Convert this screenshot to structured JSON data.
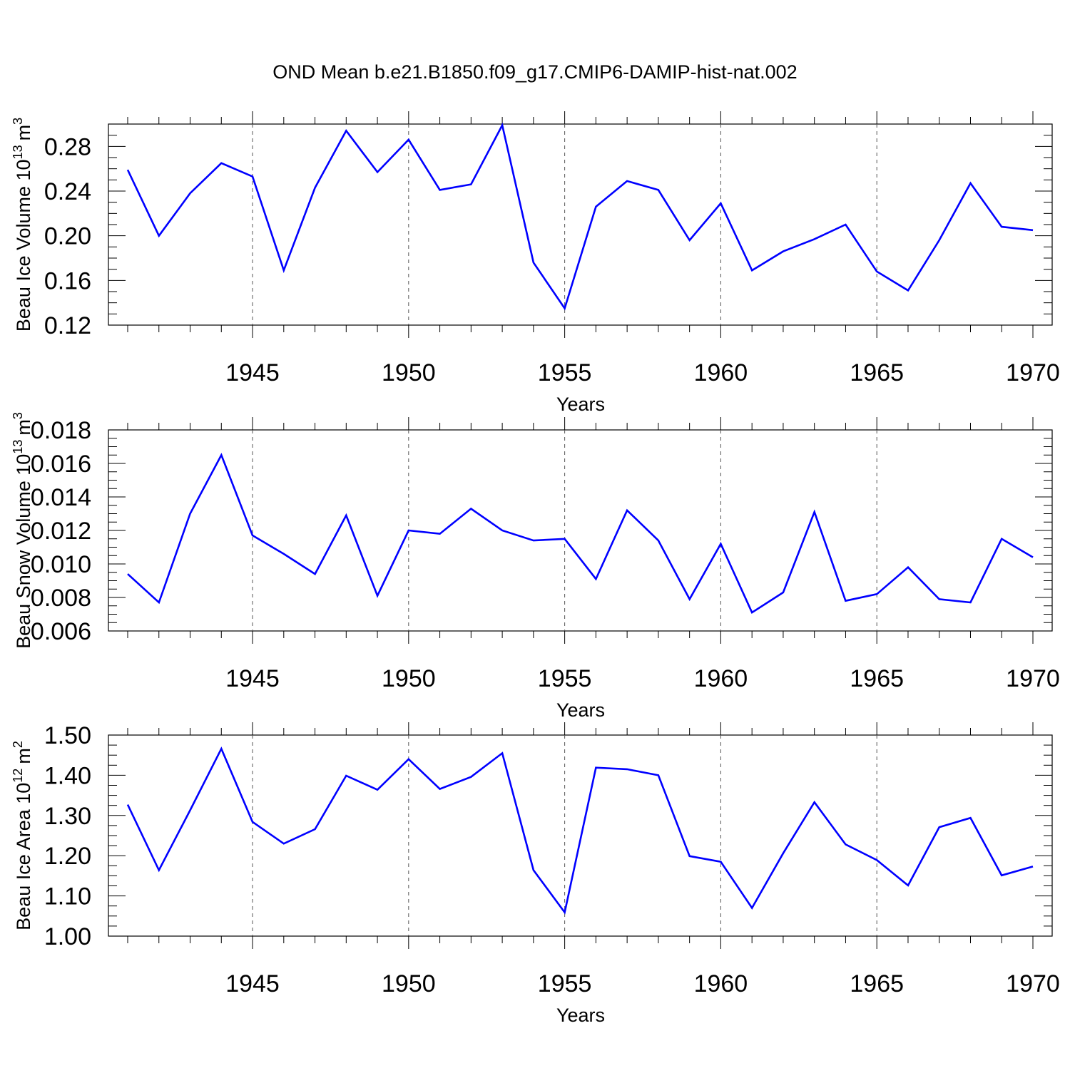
{
  "title": "OND Mean b.e21.B1850.f09_g17.CMIP6-DAMIP-hist-nat.002",
  "colors": {
    "series": "#0000ff",
    "axis": "#000000",
    "grid": "#555555",
    "background": "#ffffff"
  },
  "chart_data": [
    {
      "type": "line",
      "ylabel_main": "Beau Ice Volume 10",
      "ylabel_exp": "13",
      "ylabel_unit": "m",
      "ylabel_unit_exp": "3",
      "xlabel": "Years",
      "xlim": [
        1941,
        1970
      ],
      "ylim": [
        0.12,
        0.3
      ],
      "yticks": [
        0.12,
        0.16,
        0.2,
        0.24,
        0.28
      ],
      "ytick_labels": [
        "0.12",
        "0.16",
        "0.20",
        "0.24",
        "0.28"
      ],
      "xticks": [
        1945,
        1950,
        1955,
        1960,
        1965,
        1970
      ],
      "xtick_labels": [
        "1945",
        "1950",
        "1955",
        "1960",
        "1965",
        "1970"
      ],
      "x": [
        1941,
        1942,
        1943,
        1944,
        1945,
        1946,
        1947,
        1948,
        1949,
        1950,
        1951,
        1952,
        1953,
        1954,
        1955,
        1956,
        1957,
        1958,
        1959,
        1960,
        1961,
        1962,
        1963,
        1964,
        1965,
        1966,
        1967,
        1968,
        1969,
        1970
      ],
      "values": [
        0.259,
        0.2,
        0.238,
        0.265,
        0.253,
        0.169,
        0.243,
        0.294,
        0.257,
        0.286,
        0.241,
        0.246,
        0.299,
        0.176,
        0.135,
        0.226,
        0.249,
        0.241,
        0.196,
        0.229,
        0.169,
        0.186,
        0.197,
        0.21,
        0.168,
        0.151,
        0.196,
        0.247,
        0.208,
        0.205
      ]
    },
    {
      "type": "line",
      "ylabel_main": "Beau Snow Volume 10",
      "ylabel_exp": "13",
      "ylabel_unit": "m",
      "ylabel_unit_exp": "3",
      "xlabel": "Years",
      "xlim": [
        1941,
        1970
      ],
      "ylim": [
        0.006,
        0.018
      ],
      "yticks": [
        0.006,
        0.008,
        0.01,
        0.012,
        0.014,
        0.016,
        0.018
      ],
      "ytick_labels": [
        "0.006",
        "0.008",
        "0.010",
        "0.012",
        "0.014",
        "0.016",
        "0.018"
      ],
      "xticks": [
        1945,
        1950,
        1955,
        1960,
        1965,
        1970
      ],
      "xtick_labels": [
        "1945",
        "1950",
        "1955",
        "1960",
        "1965",
        "1970"
      ],
      "x": [
        1941,
        1942,
        1943,
        1944,
        1945,
        1946,
        1947,
        1948,
        1949,
        1950,
        1951,
        1952,
        1953,
        1954,
        1955,
        1956,
        1957,
        1958,
        1959,
        1960,
        1961,
        1962,
        1963,
        1964,
        1965,
        1966,
        1967,
        1968,
        1969,
        1970
      ],
      "values": [
        0.0094,
        0.0077,
        0.013,
        0.0165,
        0.0117,
        0.0106,
        0.0094,
        0.0129,
        0.0081,
        0.012,
        0.0118,
        0.0133,
        0.012,
        0.0114,
        0.0115,
        0.0091,
        0.0132,
        0.0114,
        0.0079,
        0.0112,
        0.0071,
        0.0083,
        0.0131,
        0.0078,
        0.0082,
        0.0098,
        0.0079,
        0.0077,
        0.0115,
        0.0104
      ]
    },
    {
      "type": "line",
      "ylabel_main": "Beau Ice Area 10",
      "ylabel_exp": "12",
      "ylabel_unit": "m",
      "ylabel_unit_exp": "2",
      "xlabel": "Years",
      "xlim": [
        1941,
        1970
      ],
      "ylim": [
        1.0,
        1.5
      ],
      "yticks": [
        1.0,
        1.1,
        1.2,
        1.3,
        1.4,
        1.5
      ],
      "ytick_labels": [
        "1.00",
        "1.10",
        "1.20",
        "1.30",
        "1.40",
        "1.50"
      ],
      "xticks": [
        1945,
        1950,
        1955,
        1960,
        1965,
        1970
      ],
      "xtick_labels": [
        "1945",
        "1950",
        "1955",
        "1960",
        "1965",
        "1970"
      ],
      "x": [
        1941,
        1942,
        1943,
        1944,
        1945,
        1946,
        1947,
        1948,
        1949,
        1950,
        1951,
        1952,
        1953,
        1954,
        1955,
        1956,
        1957,
        1958,
        1959,
        1960,
        1961,
        1962,
        1963,
        1964,
        1965,
        1966,
        1967,
        1968,
        1969,
        1970
      ],
      "values": [
        1.327,
        1.164,
        1.313,
        1.466,
        1.284,
        1.23,
        1.266,
        1.399,
        1.364,
        1.44,
        1.366,
        1.396,
        1.455,
        1.164,
        1.059,
        1.419,
        1.415,
        1.4,
        1.199,
        1.185,
        1.07,
        1.206,
        1.333,
        1.228,
        1.189,
        1.126,
        1.271,
        1.294,
        1.151,
        1.173
      ]
    }
  ]
}
